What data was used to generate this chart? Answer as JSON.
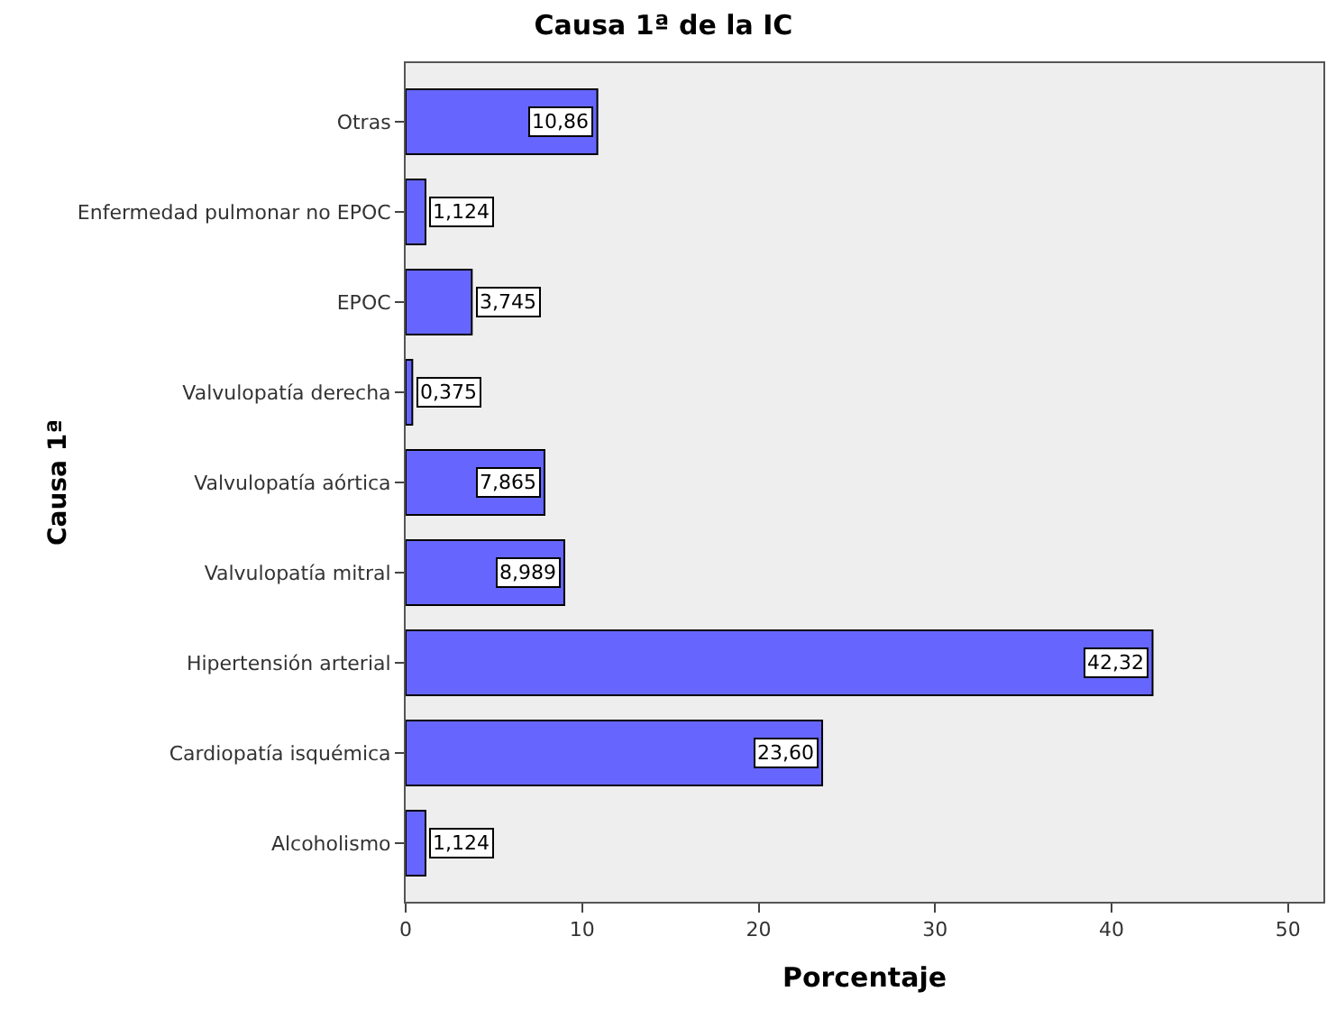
{
  "chart_data": {
    "type": "bar",
    "orientation": "horizontal",
    "title": "Causa 1ª de la IC",
    "xlabel": "Porcentaje",
    "ylabel": "Causa 1ª",
    "categories": [
      "Otras",
      "Enfermedad pulmonar no EPOC",
      "EPOC",
      "Valvulopatía derecha",
      "Valvulopatía aórtica",
      "Valvulopatía mitral",
      "Hipertensión arterial",
      "Cardiopatía isquémica",
      "Alcoholismo"
    ],
    "values": [
      10.86,
      1.124,
      3.745,
      0.375,
      7.865,
      8.989,
      42.32,
      23.6,
      1.124
    ],
    "value_labels": [
      "10,86",
      "1,124",
      "3,745",
      "0,375",
      "7,865",
      "8,989",
      "42,32",
      "23,60",
      "1,124"
    ],
    "color": "#6666ff",
    "xlim": [
      0,
      52
    ],
    "xticks": [
      0,
      10,
      20,
      30,
      40,
      50
    ],
    "grid": false,
    "legend": false
  }
}
